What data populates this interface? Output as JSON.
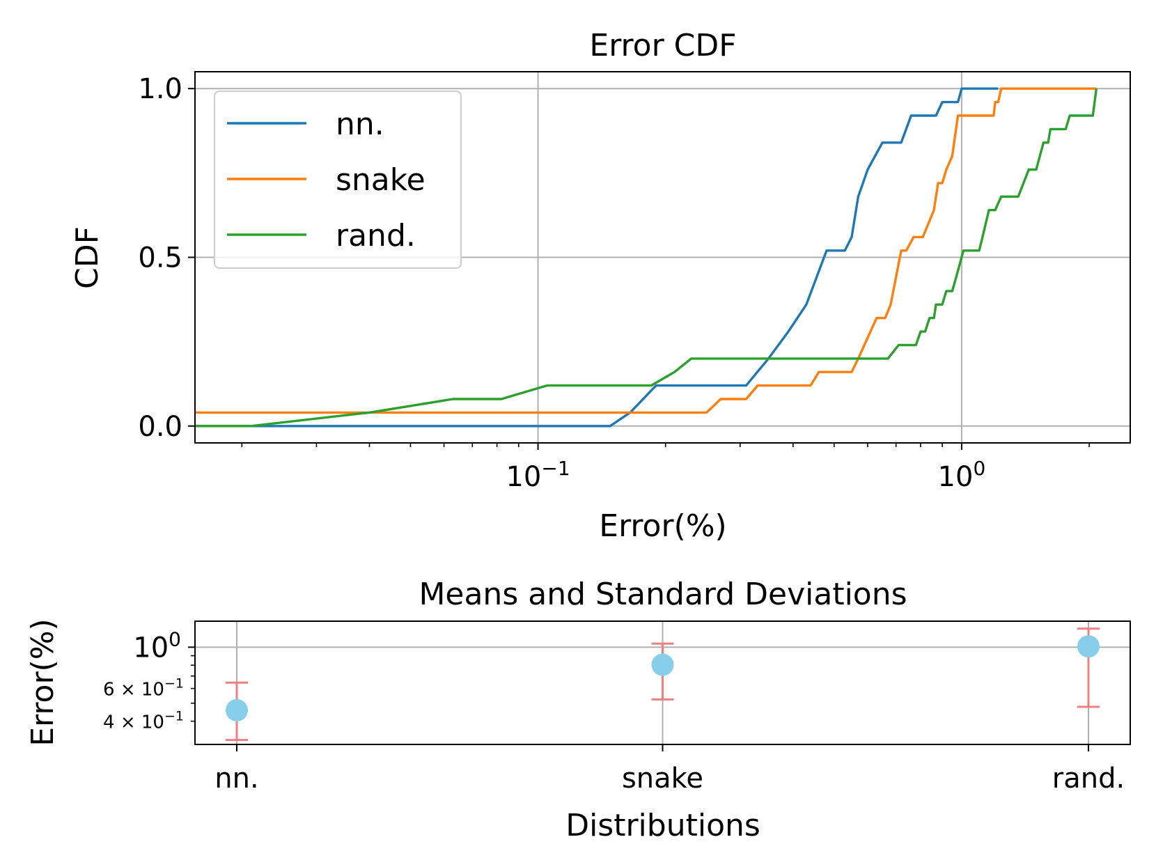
{
  "chart_data": [
    {
      "type": "line",
      "title": "Error CDF",
      "xlabel": "Error(%)",
      "ylabel": "CDF",
      "xscale": "log",
      "xlim": [
        0.0155,
        2.5
      ],
      "ylim": [
        -0.05,
        1.05
      ],
      "xticks": [
        {
          "value": 0.1,
          "base": "10",
          "exp": "−1"
        },
        {
          "value": 1,
          "base": "10",
          "exp": "0"
        }
      ],
      "yticks": [
        {
          "value": 0.0,
          "label": "0.0"
        },
        {
          "value": 0.5,
          "label": "0.5"
        },
        {
          "value": 1.0,
          "label": "1.0"
        }
      ],
      "grid": true,
      "legend": "upper left",
      "series": [
        {
          "name": "nn.",
          "color": "#1f77b4",
          "points": [
            [
              0.0155,
              0
            ],
            [
              0.148,
              0
            ],
            [
              0.165,
              0.04
            ],
            [
              0.19,
              0.12
            ],
            [
              0.31,
              0.12
            ],
            [
              0.35,
              0.2
            ],
            [
              0.39,
              0.28
            ],
            [
              0.43,
              0.36
            ],
            [
              0.48,
              0.52
            ],
            [
              0.53,
              0.52
            ],
            [
              0.55,
              0.56
            ],
            [
              0.57,
              0.68
            ],
            [
              0.6,
              0.76
            ],
            [
              0.65,
              0.84
            ],
            [
              0.72,
              0.84
            ],
            [
              0.76,
              0.92
            ],
            [
              0.87,
              0.92
            ],
            [
              0.9,
              0.96
            ],
            [
              0.98,
              0.96
            ],
            [
              1.0,
              1.0
            ],
            [
              1.22,
              1.0
            ]
          ]
        },
        {
          "name": "snake",
          "color": "#ff7f0e",
          "points": [
            [
              0.0155,
              0.04
            ],
            [
              0.25,
              0.04
            ],
            [
              0.27,
              0.08
            ],
            [
              0.31,
              0.08
            ],
            [
              0.33,
              0.12
            ],
            [
              0.44,
              0.12
            ],
            [
              0.46,
              0.16
            ],
            [
              0.55,
              0.16
            ],
            [
              0.57,
              0.2
            ],
            [
              0.63,
              0.32
            ],
            [
              0.66,
              0.32
            ],
            [
              0.68,
              0.36
            ],
            [
              0.72,
              0.52
            ],
            [
              0.74,
              0.52
            ],
            [
              0.77,
              0.56
            ],
            [
              0.81,
              0.56
            ],
            [
              0.86,
              0.64
            ],
            [
              0.88,
              0.72
            ],
            [
              0.9,
              0.72
            ],
            [
              0.92,
              0.76
            ],
            [
              0.95,
              0.8
            ],
            [
              0.98,
              0.92
            ],
            [
              1.12,
              0.92
            ],
            [
              1.19,
              0.92
            ],
            [
              1.2,
              0.96
            ],
            [
              1.22,
              0.96
            ],
            [
              1.24,
              1.0
            ],
            [
              2.08,
              1.0
            ]
          ]
        },
        {
          "name": "rand.",
          "color": "#2ca02c",
          "points": [
            [
              0.0155,
              0
            ],
            [
              0.021,
              0
            ],
            [
              0.04,
              0.04
            ],
            [
              0.063,
              0.08
            ],
            [
              0.082,
              0.08
            ],
            [
              0.105,
              0.12
            ],
            [
              0.185,
              0.12
            ],
            [
              0.21,
              0.16
            ],
            [
              0.23,
              0.2
            ],
            [
              0.67,
              0.2
            ],
            [
              0.71,
              0.24
            ],
            [
              0.78,
              0.24
            ],
            [
              0.8,
              0.28
            ],
            [
              0.82,
              0.28
            ],
            [
              0.84,
              0.32
            ],
            [
              0.86,
              0.32
            ],
            [
              0.87,
              0.36
            ],
            [
              0.9,
              0.36
            ],
            [
              0.92,
              0.4
            ],
            [
              0.95,
              0.4
            ],
            [
              0.97,
              0.44
            ],
            [
              1.01,
              0.52
            ],
            [
              1.1,
              0.52
            ],
            [
              1.12,
              0.56
            ],
            [
              1.16,
              0.64
            ],
            [
              1.2,
              0.64
            ],
            [
              1.24,
              0.68
            ],
            [
              1.36,
              0.68
            ],
            [
              1.44,
              0.76
            ],
            [
              1.5,
              0.76
            ],
            [
              1.56,
              0.84
            ],
            [
              1.6,
              0.84
            ],
            [
              1.62,
              0.88
            ],
            [
              1.76,
              0.88
            ],
            [
              1.8,
              0.92
            ],
            [
              2.04,
              0.92
            ],
            [
              2.08,
              1.0
            ]
          ]
        }
      ]
    },
    {
      "type": "scatter",
      "title": "Means and Standard Deviations",
      "xlabel": "Distributions",
      "ylabel": "Error(%)",
      "yscale": "log",
      "ylim": [
        0.3,
        1.38
      ],
      "categories": [
        "nn.",
        "snake",
        "rand."
      ],
      "yticks": [
        {
          "value": 1.0,
          "base": "10",
          "exp": "0",
          "major": true
        },
        {
          "value": 0.6,
          "label": "6 × 10",
          "exp": "−1",
          "major": false
        },
        {
          "value": 0.4,
          "label": "4 × 10",
          "exp": "−1",
          "major": false
        }
      ],
      "grid": true,
      "marker_color": "#87ceeb",
      "errorbar_color": "#f08080",
      "series": [
        {
          "name": "",
          "means": [
            0.458,
            0.805,
            1.01
          ],
          "lower": [
            0.317,
            0.524,
            0.478
          ],
          "upper": [
            0.645,
            1.045,
            1.258
          ]
        }
      ]
    }
  ]
}
